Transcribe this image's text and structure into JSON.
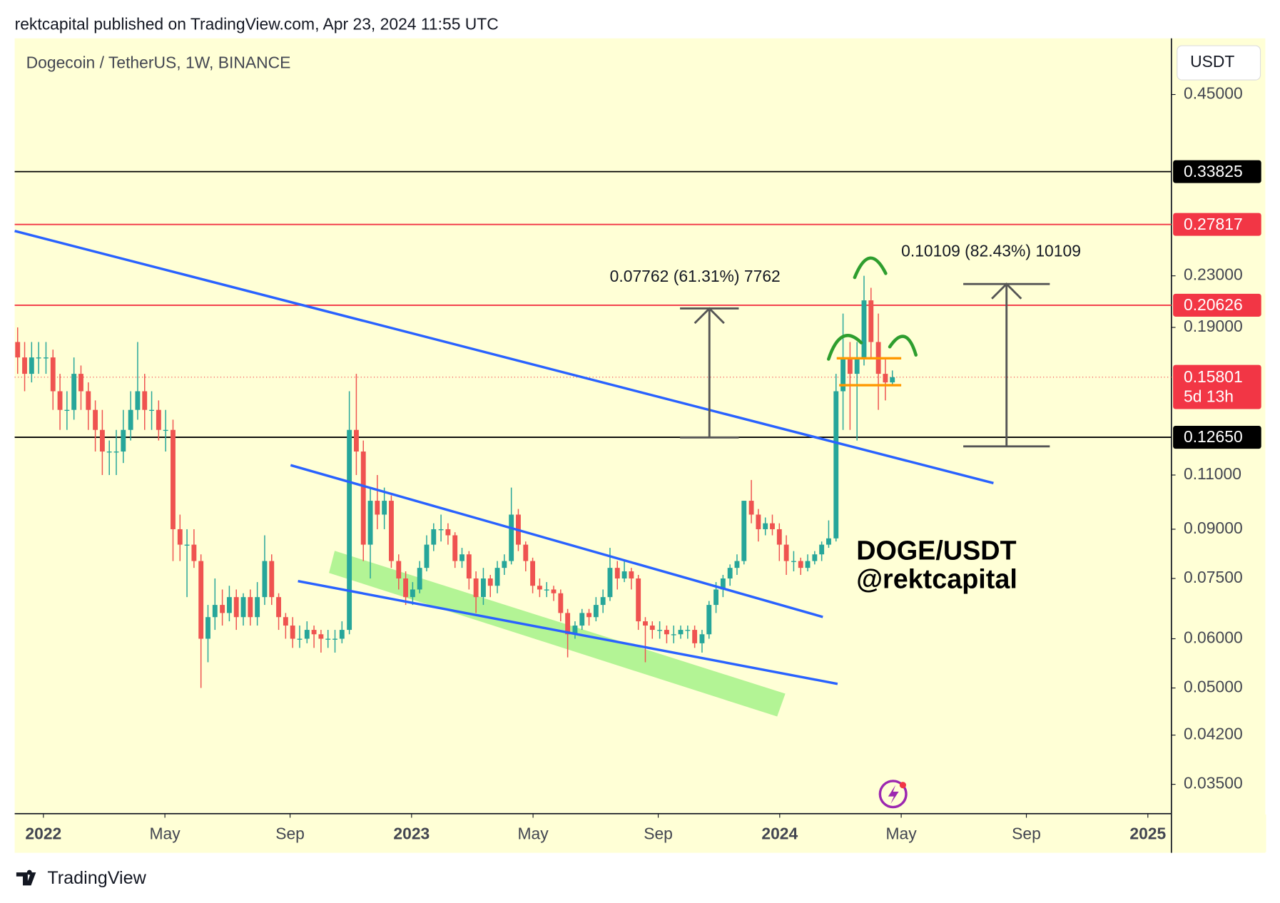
{
  "chart_data": {
    "type": "candlestick",
    "published": "rektcapital published on TradingView.com, Apr 23, 2024 11:55 UTC",
    "title": "Dogecoin / TetherUS, 1W, BINANCE",
    "currency": "USDT",
    "brand": "TradingView",
    "watermark": [
      "DOGE/USDT",
      "@rektcapital"
    ],
    "annotations": [
      "0.07762 (61.31%) 7762",
      "0.10109 (82.43%) 10109"
    ],
    "log_scale": true,
    "up_color": "#26a69a",
    "down_color": "#ef5350",
    "xlim": [
      2021.922,
      2025.064
    ],
    "xticks": [
      2022,
      {
        "value": 2022.33,
        "label": "May"
      },
      {
        "value": 2022.67,
        "label": "Sep"
      },
      2023,
      {
        "value": 2023.33,
        "label": "May"
      },
      {
        "value": 2023.67,
        "label": "Sep"
      },
      2024,
      {
        "value": 2024.33,
        "label": "May"
      },
      {
        "value": 2024.67,
        "label": "Sep"
      },
      2025
    ],
    "ylim": [
      0.0314,
      0.554
    ],
    "yticks": [
      {
        "value": 0.45,
        "label": "0.45000"
      },
      {
        "value": 0.23,
        "label": "0.23000"
      },
      {
        "value": 0.19,
        "label": "0.19000"
      },
      {
        "value": 0.11,
        "label": "0.11000"
      },
      {
        "value": 0.09,
        "label": "0.09000"
      },
      {
        "value": 0.075,
        "label": "0.07500"
      },
      {
        "value": 0.06,
        "label": "0.06000"
      },
      {
        "value": 0.05,
        "label": "0.05000"
      },
      {
        "value": 0.042,
        "label": "0.04200"
      },
      {
        "value": 0.035,
        "label": "0.03500"
      }
    ],
    "levels": [
      {
        "value": 0.33825,
        "label": "0.33825",
        "color": "#000000"
      },
      {
        "value": 0.27817,
        "label": "0.27817",
        "color": "#f23645"
      },
      {
        "value": 0.20626,
        "label": "0.20626",
        "color": "#f23645"
      },
      {
        "value": 0.1265,
        "label": "0.12650",
        "color": "#000000"
      }
    ],
    "last_price": {
      "value": 0.15801,
      "label": "0.15801",
      "countdown": "5d 13h",
      "color": "#f23645"
    },
    "x": [
      2021.93,
      2021.949,
      2021.968,
      2021.987,
      2022.007,
      2022.026,
      2022.045,
      2022.064,
      2022.083,
      2022.102,
      2022.122,
      2022.141,
      2022.16,
      2022.179,
      2022.198,
      2022.217,
      2022.237,
      2022.256,
      2022.275,
      2022.294,
      2022.313,
      2022.332,
      2022.352,
      2022.371,
      2022.39,
      2022.409,
      2022.428,
      2022.447,
      2022.466,
      2022.486,
      2022.505,
      2022.524,
      2022.543,
      2022.562,
      2022.581,
      2022.601,
      2022.62,
      2022.639,
      2022.658,
      2022.677,
      2022.696,
      2022.716,
      2022.735,
      2022.754,
      2022.773,
      2022.792,
      2022.811,
      2022.831,
      2022.85,
      2022.869,
      2022.888,
      2022.907,
      2022.926,
      2022.945,
      2022.965,
      2022.984,
      2023.003,
      2023.022,
      2023.041,
      2023.06,
      2023.08,
      2023.099,
      2023.118,
      2023.137,
      2023.156,
      2023.175,
      2023.195,
      2023.214,
      2023.233,
      2023.252,
      2023.271,
      2023.29,
      2023.31,
      2023.329,
      2023.348,
      2023.367,
      2023.386,
      2023.405,
      2023.424,
      2023.444,
      2023.463,
      2023.482,
      2023.501,
      2023.52,
      2023.539,
      2023.559,
      2023.578,
      2023.597,
      2023.616,
      2023.635,
      2023.654,
      2023.674,
      2023.693,
      2023.712,
      2023.731,
      2023.75,
      2023.769,
      2023.789,
      2023.808,
      2023.827,
      2023.846,
      2023.865,
      2023.884,
      2023.903,
      2023.923,
      2023.942,
      2023.961,
      2023.98,
      2023.999,
      2024.018,
      2024.038,
      2024.057,
      2024.076,
      2024.095,
      2024.114,
      2024.133,
      2024.153,
      2024.172,
      2024.191,
      2024.21,
      2024.229,
      2024.248,
      2024.268,
      2024.287,
      2024.306
    ],
    "ohlc": [
      [
        0.18,
        0.19,
        0.16,
        0.17
      ],
      [
        0.17,
        0.18,
        0.15,
        0.16
      ],
      [
        0.16,
        0.18,
        0.155,
        0.17
      ],
      [
        0.17,
        0.18,
        0.16,
        0.17
      ],
      [
        0.17,
        0.18,
        0.16,
        0.17
      ],
      [
        0.17,
        0.175,
        0.14,
        0.15
      ],
      [
        0.15,
        0.16,
        0.13,
        0.14
      ],
      [
        0.14,
        0.15,
        0.13,
        0.14
      ],
      [
        0.14,
        0.17,
        0.135,
        0.16
      ],
      [
        0.16,
        0.165,
        0.14,
        0.15
      ],
      [
        0.15,
        0.155,
        0.13,
        0.14
      ],
      [
        0.14,
        0.145,
        0.12,
        0.13
      ],
      [
        0.13,
        0.14,
        0.11,
        0.12
      ],
      [
        0.12,
        0.125,
        0.11,
        0.12
      ],
      [
        0.12,
        0.13,
        0.11,
        0.12
      ],
      [
        0.12,
        0.14,
        0.115,
        0.13
      ],
      [
        0.13,
        0.15,
        0.125,
        0.14
      ],
      [
        0.14,
        0.18,
        0.135,
        0.15
      ],
      [
        0.15,
        0.16,
        0.13,
        0.14
      ],
      [
        0.14,
        0.15,
        0.13,
        0.14
      ],
      [
        0.14,
        0.145,
        0.125,
        0.13
      ],
      [
        0.13,
        0.14,
        0.12,
        0.13
      ],
      [
        0.13,
        0.135,
        0.08,
        0.09
      ],
      [
        0.09,
        0.095,
        0.08,
        0.085
      ],
      [
        0.085,
        0.09,
        0.07,
        0.085
      ],
      [
        0.085,
        0.09,
        0.078,
        0.08
      ],
      [
        0.08,
        0.082,
        0.05,
        0.06
      ],
      [
        0.06,
        0.068,
        0.055,
        0.065
      ],
      [
        0.065,
        0.075,
        0.062,
        0.068
      ],
      [
        0.068,
        0.072,
        0.063,
        0.066
      ],
      [
        0.066,
        0.073,
        0.064,
        0.07
      ],
      [
        0.07,
        0.072,
        0.062,
        0.065
      ],
      [
        0.065,
        0.071,
        0.063,
        0.07
      ],
      [
        0.07,
        0.072,
        0.063,
        0.065
      ],
      [
        0.065,
        0.074,
        0.063,
        0.07
      ],
      [
        0.07,
        0.088,
        0.068,
        0.08
      ],
      [
        0.08,
        0.082,
        0.068,
        0.07
      ],
      [
        0.07,
        0.071,
        0.062,
        0.065
      ],
      [
        0.065,
        0.066,
        0.06,
        0.063
      ],
      [
        0.063,
        0.065,
        0.058,
        0.06
      ],
      [
        0.06,
        0.063,
        0.058,
        0.06
      ],
      [
        0.06,
        0.064,
        0.059,
        0.062
      ],
      [
        0.062,
        0.063,
        0.058,
        0.061
      ],
      [
        0.061,
        0.062,
        0.057,
        0.06
      ],
      [
        0.06,
        0.062,
        0.058,
        0.06
      ],
      [
        0.06,
        0.062,
        0.057,
        0.06
      ],
      [
        0.06,
        0.064,
        0.059,
        0.062
      ],
      [
        0.062,
        0.15,
        0.061,
        0.13
      ],
      [
        0.13,
        0.16,
        0.11,
        0.12
      ],
      [
        0.12,
        0.125,
        0.08,
        0.085
      ],
      [
        0.085,
        0.105,
        0.075,
        0.1
      ],
      [
        0.1,
        0.11,
        0.09,
        0.095
      ],
      [
        0.095,
        0.105,
        0.09,
        0.1
      ],
      [
        0.1,
        0.102,
        0.078,
        0.08
      ],
      [
        0.08,
        0.082,
        0.072,
        0.075
      ],
      [
        0.075,
        0.077,
        0.068,
        0.07
      ],
      [
        0.07,
        0.074,
        0.068,
        0.072
      ],
      [
        0.072,
        0.08,
        0.071,
        0.078
      ],
      [
        0.078,
        0.088,
        0.077,
        0.085
      ],
      [
        0.085,
        0.092,
        0.083,
        0.09
      ],
      [
        0.09,
        0.095,
        0.086,
        0.09
      ],
      [
        0.09,
        0.092,
        0.085,
        0.088
      ],
      [
        0.088,
        0.089,
        0.078,
        0.08
      ],
      [
        0.08,
        0.084,
        0.078,
        0.082
      ],
      [
        0.082,
        0.083,
        0.072,
        0.075
      ],
      [
        0.075,
        0.077,
        0.066,
        0.07
      ],
      [
        0.07,
        0.078,
        0.068,
        0.075
      ],
      [
        0.075,
        0.076,
        0.07,
        0.073
      ],
      [
        0.073,
        0.08,
        0.071,
        0.078
      ],
      [
        0.078,
        0.082,
        0.076,
        0.08
      ],
      [
        0.08,
        0.105,
        0.079,
        0.095
      ],
      [
        0.095,
        0.097,
        0.083,
        0.085
      ],
      [
        0.085,
        0.086,
        0.077,
        0.08
      ],
      [
        0.08,
        0.081,
        0.071,
        0.073
      ],
      [
        0.073,
        0.075,
        0.07,
        0.072
      ],
      [
        0.072,
        0.074,
        0.07,
        0.072
      ],
      [
        0.072,
        0.073,
        0.069,
        0.071
      ],
      [
        0.071,
        0.072,
        0.064,
        0.066
      ],
      [
        0.066,
        0.067,
        0.056,
        0.061
      ],
      [
        0.061,
        0.064,
        0.06,
        0.063
      ],
      [
        0.063,
        0.067,
        0.062,
        0.066
      ],
      [
        0.066,
        0.067,
        0.063,
        0.065
      ],
      [
        0.065,
        0.07,
        0.064,
        0.068
      ],
      [
        0.068,
        0.072,
        0.066,
        0.07
      ],
      [
        0.07,
        0.084,
        0.069,
        0.078
      ],
      [
        0.078,
        0.08,
        0.072,
        0.075
      ],
      [
        0.075,
        0.08,
        0.074,
        0.077
      ],
      [
        0.077,
        0.078,
        0.072,
        0.075
      ],
      [
        0.075,
        0.076,
        0.062,
        0.064
      ],
      [
        0.064,
        0.065,
        0.055,
        0.063
      ],
      [
        0.063,
        0.064,
        0.06,
        0.062
      ],
      [
        0.062,
        0.064,
        0.06,
        0.062
      ],
      [
        0.062,
        0.063,
        0.059,
        0.061
      ],
      [
        0.061,
        0.063,
        0.059,
        0.061
      ],
      [
        0.061,
        0.063,
        0.06,
        0.062
      ],
      [
        0.062,
        0.063,
        0.06,
        0.062
      ],
      [
        0.062,
        0.063,
        0.058,
        0.059
      ],
      [
        0.059,
        0.062,
        0.057,
        0.061
      ],
      [
        0.061,
        0.069,
        0.06,
        0.068
      ],
      [
        0.068,
        0.074,
        0.066,
        0.072
      ],
      [
        0.072,
        0.076,
        0.07,
        0.075
      ],
      [
        0.075,
        0.079,
        0.073,
        0.078
      ],
      [
        0.078,
        0.082,
        0.076,
        0.08
      ],
      [
        0.08,
        0.1,
        0.079,
        0.1
      ],
      [
        0.1,
        0.108,
        0.092,
        0.095
      ],
      [
        0.095,
        0.097,
        0.086,
        0.09
      ],
      [
        0.09,
        0.094,
        0.088,
        0.092
      ],
      [
        0.092,
        0.095,
        0.088,
        0.09
      ],
      [
        0.09,
        0.092,
        0.08,
        0.085
      ],
      [
        0.085,
        0.088,
        0.076,
        0.08
      ],
      [
        0.08,
        0.083,
        0.077,
        0.08
      ],
      [
        0.08,
        0.081,
        0.076,
        0.078
      ],
      [
        0.078,
        0.082,
        0.077,
        0.08
      ],
      [
        0.08,
        0.083,
        0.079,
        0.082
      ],
      [
        0.082,
        0.086,
        0.08,
        0.085
      ],
      [
        0.085,
        0.093,
        0.084,
        0.087
      ],
      [
        0.087,
        0.16,
        0.086,
        0.15
      ],
      [
        0.15,
        0.2,
        0.13,
        0.17
      ],
      [
        0.17,
        0.18,
        0.13,
        0.16
      ],
      [
        0.16,
        0.18,
        0.125,
        0.17
      ],
      [
        0.17,
        0.23,
        0.165,
        0.21
      ],
      [
        0.21,
        0.22,
        0.17,
        0.18
      ],
      [
        0.18,
        0.2,
        0.14,
        0.16
      ],
      [
        0.16,
        0.17,
        0.145,
        0.155
      ],
      [
        0.155,
        0.162,
        0.153,
        0.158
      ]
    ]
  }
}
